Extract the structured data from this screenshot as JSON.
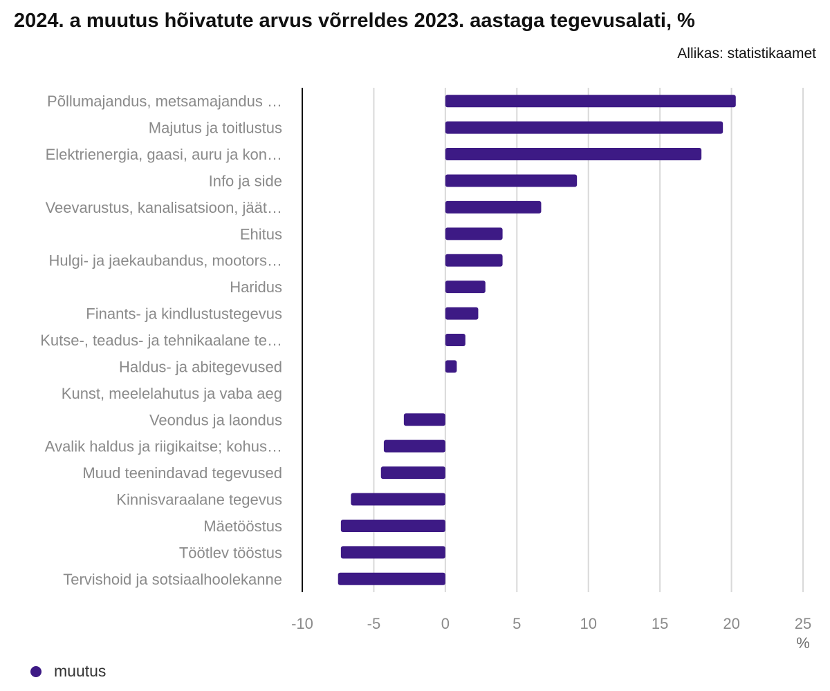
{
  "title": "2024. a muutus hõivatute arvus võrreldes 2023. aastaga tegevusalati, %",
  "source": "Allikas: statistikaamet",
  "chart_data": {
    "type": "bar",
    "orientation": "horizontal",
    "categories": [
      "Põllumajandus, metsamajandus …",
      "Majutus ja toitlustus",
      "Elektrienergia, gaasi, auru ja kon…",
      "Info ja side",
      "Veevarustus, kanalisatsioon, jäät…",
      "Ehitus",
      "Hulgi- ja jaekaubandus, mootors…",
      "Haridus",
      "Finants- ja kindlustustegevus",
      "Kutse-, teadus- ja tehnikaalane te…",
      "Haldus- ja abitegevused",
      "Kunst, meelelahutus ja vaba aeg",
      "Veondus ja laondus",
      "Avalik haldus ja riigikaitse; kohus…",
      "Muud teenindavad tegevused",
      "Kinnisvaraalane tegevus",
      "Mäetööstus",
      "Töötlev tööstus",
      "Tervishoid ja sotsiaalhoolekanne"
    ],
    "series": [
      {
        "name": "muutus",
        "color": "#3d1a85",
        "values": [
          20.3,
          19.4,
          17.9,
          9.2,
          6.7,
          4.0,
          4.0,
          2.8,
          2.3,
          1.4,
          0.8,
          0.0,
          -2.9,
          -4.3,
          -4.5,
          -6.6,
          -7.3,
          -7.3,
          -7.5
        ]
      }
    ],
    "xlim": [
      -10,
      25
    ],
    "xticks": [
      "-10",
      "-5",
      "0",
      "5",
      "10",
      "15",
      "20",
      "25"
    ],
    "xunit": "%",
    "grid": true,
    "legend_position": "bottom-left"
  }
}
